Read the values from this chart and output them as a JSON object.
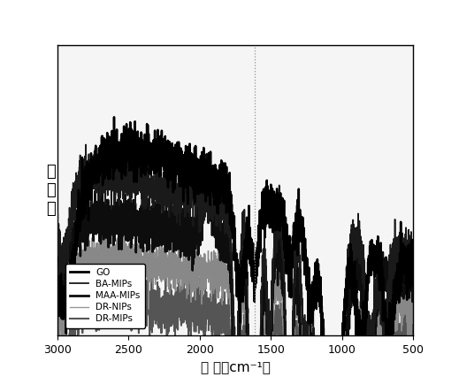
{
  "xlabel": "波 数（cm⁻¹）",
  "ylabel": "透\n光\n率",
  "xlim": [
    3000,
    500
  ],
  "xticks": [
    3000,
    2500,
    2000,
    1500,
    1000,
    500
  ],
  "background_color": "#ffffff",
  "plot_bg": "#f5f5f5",
  "colors": [
    "#000000",
    "#1a1a1a",
    "#0d0d0d",
    "#888888",
    "#555555"
  ],
  "lws": [
    1.8,
    1.2,
    1.8,
    1.0,
    1.4
  ],
  "legend_labels": [
    "GO",
    "BA-MIPs",
    "MAA-MIPs",
    "DR-NIPs",
    "DR-MIPs"
  ],
  "vline_x": 1615,
  "offsets": [
    0.52,
    0.39,
    0.26,
    0.13,
    0.0
  ],
  "figsize": [
    5.19,
    4.26
  ],
  "dpi": 100,
  "seed": 42
}
